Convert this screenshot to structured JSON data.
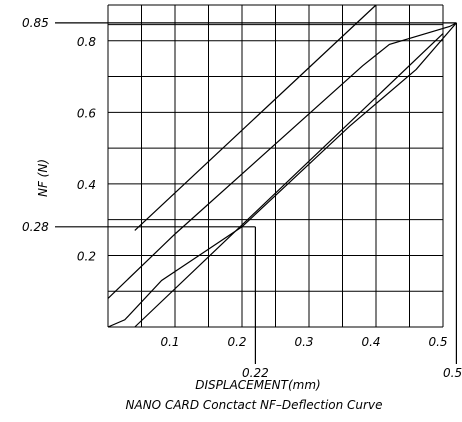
{
  "chart_data": {
    "type": "line",
    "title": "NANO CARD Conctact NF–Deflection Curve",
    "xlabel": "DISPLACEMENT(mm)",
    "ylabel": "NF (N)",
    "xlim": [
      0,
      0.5
    ],
    "ylim": [
      0,
      0.9
    ],
    "grid": true,
    "x_ticks": [
      "0.1",
      "0.2",
      "0.3",
      "0.4",
      "0.5"
    ],
    "y_ticks": [
      "0.2",
      "0.4",
      "0.6",
      "0.8"
    ],
    "reference_lines": [
      {
        "x": 0.22,
        "y": 0.28,
        "x_label": "0.22",
        "y_label": "0.28"
      },
      {
        "x": 0.52,
        "y": 0.85,
        "x_label": "0.52",
        "y_label": "0.85"
      }
    ],
    "series": [
      {
        "points": [
          [
            0.0,
            0.0
          ],
          [
            0.025,
            0.02
          ],
          [
            0.08,
            0.13
          ],
          [
            0.2,
            0.28
          ],
          [
            0.36,
            0.56
          ],
          [
            0.46,
            0.72
          ],
          [
            0.52,
            0.85
          ]
        ]
      },
      {
        "points": [
          [
            0.0,
            0.08
          ],
          [
            0.1,
            0.26
          ],
          [
            0.38,
            0.73
          ],
          [
            0.42,
            0.79
          ],
          [
            0.51,
            0.84
          ],
          [
            0.52,
            0.85
          ]
        ]
      },
      {
        "points": [
          [
            0.04,
            0.0
          ],
          [
            0.5,
            0.82
          ]
        ]
      },
      {
        "points": [
          [
            0.04,
            0.27
          ],
          [
            0.4,
            0.9
          ]
        ]
      }
    ]
  }
}
